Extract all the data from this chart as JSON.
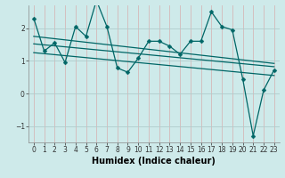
{
  "xlabel": "Humidex (Indice chaleur)",
  "bg_color": "#ceeaea",
  "line_color": "#006666",
  "grid_color": "#b0cccc",
  "x": [
    0,
    1,
    2,
    3,
    4,
    5,
    6,
    7,
    8,
    9,
    10,
    11,
    12,
    13,
    14,
    15,
    16,
    17,
    18,
    19,
    20,
    21,
    22,
    23
  ],
  "y_main": [
    2.3,
    1.3,
    1.55,
    0.95,
    2.05,
    1.75,
    2.85,
    2.05,
    0.78,
    0.65,
    1.08,
    1.6,
    1.6,
    1.45,
    1.2,
    1.6,
    1.6,
    2.5,
    2.05,
    1.95,
    0.45,
    -1.3,
    0.1,
    0.72
  ],
  "trend_lines": [
    [
      1.75,
      0.92
    ],
    [
      1.52,
      0.82
    ],
    [
      1.25,
      0.55
    ]
  ],
  "ylim": [
    -1.5,
    2.7
  ],
  "xlim": [
    -0.5,
    23.5
  ],
  "yticks": [
    -1,
    0,
    1,
    2
  ],
  "xticks": [
    0,
    1,
    2,
    3,
    4,
    5,
    6,
    7,
    8,
    9,
    10,
    11,
    12,
    13,
    14,
    15,
    16,
    17,
    18,
    19,
    20,
    21,
    22,
    23
  ],
  "figsize": [
    3.2,
    2.0
  ],
  "dpi": 100,
  "linewidth": 0.9,
  "markersize": 2.5,
  "tick_fontsize": 5.5,
  "xlabel_fontsize": 7
}
